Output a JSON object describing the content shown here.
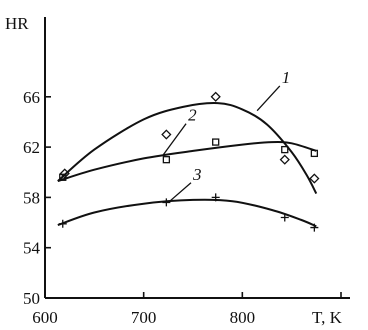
{
  "chart_data": {
    "type": "scatter",
    "ylabel": "HR",
    "xlabel": "T, K",
    "xlim": [
      600,
      900
    ],
    "ylim": [
      50,
      70
    ],
    "xticks": [
      600,
      700,
      800,
      900
    ],
    "yticks": [
      50,
      54,
      58,
      62,
      66
    ],
    "x_tick_labels": [
      "600",
      "700",
      "800",
      "T, K"
    ],
    "y_tick_labels": [
      "50",
      "54",
      "58",
      "62",
      "66"
    ],
    "grid": false,
    "series": [
      {
        "name": "1",
        "marker": "diamond",
        "points": [
          [
            620,
            59.9
          ],
          [
            723,
            63.0
          ],
          [
            773,
            66.0
          ],
          [
            843,
            61.0
          ],
          [
            873,
            59.5
          ]
        ],
        "curve": [
          [
            613,
            59.3
          ],
          [
            650,
            61.8
          ],
          [
            700,
            64.2
          ],
          [
            740,
            65.2
          ],
          [
            775,
            65.5
          ],
          [
            800,
            65.0
          ],
          [
            825,
            63.8
          ],
          [
            850,
            61.6
          ],
          [
            865,
            59.8
          ],
          [
            875,
            58.3
          ]
        ]
      },
      {
        "name": "2",
        "marker": "square",
        "points": [
          [
            618,
            59.6
          ],
          [
            723,
            61.0
          ],
          [
            773,
            62.4
          ],
          [
            843,
            61.8
          ],
          [
            873,
            61.5
          ]
        ],
        "curve": [
          [
            613,
            59.3
          ],
          [
            650,
            60.2
          ],
          [
            700,
            61.1
          ],
          [
            750,
            61.7
          ],
          [
            800,
            62.2
          ],
          [
            830,
            62.4
          ],
          [
            850,
            62.3
          ],
          [
            875,
            61.7
          ]
        ]
      },
      {
        "name": "3",
        "marker": "plus",
        "points": [
          [
            618,
            55.9
          ],
          [
            723,
            57.6
          ],
          [
            773,
            58.0
          ],
          [
            843,
            56.4
          ],
          [
            873,
            55.6
          ]
        ],
        "curve": [
          [
            613,
            55.8
          ],
          [
            650,
            56.8
          ],
          [
            700,
            57.5
          ],
          [
            750,
            57.8
          ],
          [
            790,
            57.7
          ],
          [
            830,
            57.0
          ],
          [
            860,
            56.2
          ],
          [
            875,
            55.7
          ]
        ]
      }
    ],
    "curve_labels": [
      {
        "text": "1",
        "x": 840,
        "y": 67.1,
        "tip": [
          815,
          64.9
        ]
      },
      {
        "text": "2",
        "x": 745,
        "y": 64.1,
        "tip": [
          720,
          61.4
        ]
      },
      {
        "text": "3",
        "x": 750,
        "y": 59.4,
        "tip": [
          725,
          57.6
        ]
      }
    ]
  }
}
